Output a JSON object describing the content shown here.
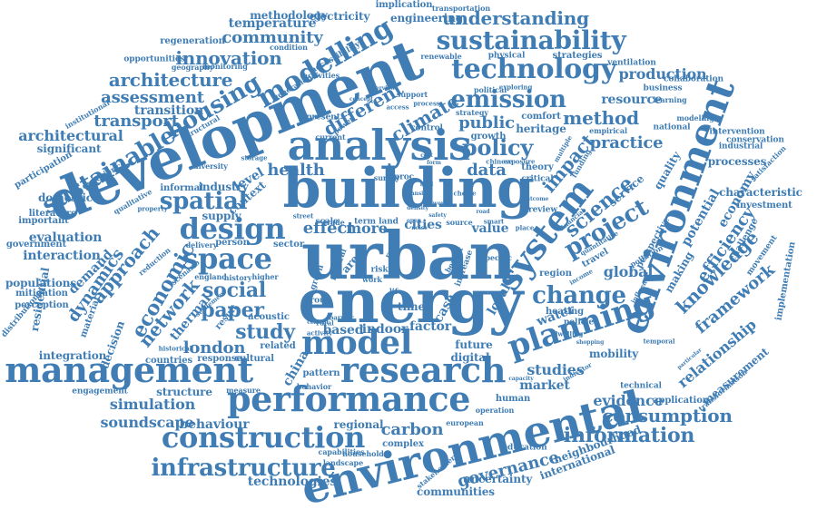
{
  "style": {
    "color": "#3f7db4",
    "background": "#ffffff"
  },
  "words": [
    "building",
    "urban",
    "energy",
    "development",
    "analysis",
    "environmental",
    "environment",
    "management",
    "performance",
    "research",
    "model",
    "planning",
    "system",
    "design",
    "space",
    "sustainability",
    "technology",
    "construction",
    "infrastructure",
    "sustainable",
    "modelling",
    "emission",
    "policy",
    "housing",
    "economic",
    "network",
    "approach",
    "social",
    "paper",
    "change",
    "project",
    "science",
    "information",
    "consumption",
    "spatial",
    "climate",
    "different",
    "public",
    "method",
    "practice",
    "impact",
    "understanding",
    "architecture",
    "innovation",
    "community",
    "assessment",
    "transport",
    "transition",
    "architectural",
    "dynamics",
    "demand",
    "interaction",
    "evaluation",
    "london",
    "study",
    "health",
    "effect",
    "more",
    "data",
    "governance",
    "carbon",
    "simulation",
    "soundscape",
    "behaviour",
    "knowledge",
    "framework",
    "relationship",
    "efficiency",
    "economy",
    "potential",
    "global",
    "market",
    "studies",
    "evidence",
    "resource",
    "production",
    "processes",
    "characteristic",
    "investment",
    "implementation",
    "measurement",
    "structure",
    "technologies",
    "communities",
    "uncertainty",
    "international",
    "neighbourhood",
    "complex",
    "regional",
    "cities",
    "value",
    "factor",
    "indoor",
    "digital",
    "future",
    "time",
    "service",
    "quality",
    "thermal",
    "residential",
    "decision",
    "material",
    "integration",
    "populations",
    "mitigation",
    "perception",
    "distributional",
    "countries",
    "response",
    "cultural",
    "engagement",
    "significant",
    "participation",
    "domestic",
    "literature",
    "important",
    "government",
    "experience",
    "qualitative",
    "informal",
    "supply",
    "industry",
    "level",
    "context",
    "result",
    "sector",
    "person",
    "delivery",
    "related",
    "acoustic",
    "based",
    "china",
    "pattern",
    "human",
    "education",
    "stakeholder",
    "landscape",
    "household",
    "capabilities",
    "european",
    "operation",
    "mobility",
    "technical",
    "application",
    "heating",
    "water",
    "policies",
    "region",
    "making",
    "perspective",
    "global",
    "temperature",
    "methodology",
    "electricity",
    "implication",
    "engineering",
    "transportation",
    "regeneration",
    "opportunities",
    "geography",
    "monitoring",
    "condition",
    "accessibility",
    "activities",
    "renewable",
    "physical",
    "strategies",
    "ventilation",
    "collaboration",
    "business",
    "learning",
    "modeling",
    "intervention",
    "conservation",
    "industrial",
    "satisfaction",
    "challenge",
    "movement",
    "national",
    "heritage",
    "comfort",
    "growth",
    "strategy",
    "control",
    "present",
    "current",
    "power",
    "structural",
    "institutional",
    "generation",
    "political",
    "exploring",
    "support",
    "empirical",
    "theory",
    "critical",
    "survey",
    "review",
    "scale",
    "trade",
    "term",
    "land",
    "source",
    "smart",
    "place",
    "local",
    "case",
    "work",
    "risk",
    "area",
    "green",
    "natural",
    "group",
    "higher",
    "history",
    "england",
    "settlement",
    "scenario",
    "reduction",
    "property",
    "diversity",
    "storage",
    "historical",
    "measure",
    "behavior",
    "rural",
    "barrier",
    "central",
    "activity",
    "street",
    "specific",
    "increase",
    "benefit",
    "proc",
    "life",
    "interview",
    "concept",
    "access",
    "process",
    "financial",
    "quantitative",
    "temporal",
    "pollution",
    "travel",
    "dwelling",
    "influence",
    "income",
    "particular",
    "transformation",
    "indicator",
    "capacity",
    "shopping",
    "funding",
    "chinese",
    "exposure",
    "choice",
    "multiple",
    "outcome",
    "world",
    "form",
    "cost",
    "noise",
    "health",
    "open",
    "safety",
    "density",
    "food",
    "transit",
    "road",
    "role"
  ]
}
